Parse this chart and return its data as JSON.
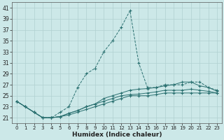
{
  "xlabel": "Humidex (Indice chaleur)",
  "background_color": "#cce8e8",
  "grid_color": "#b0d0d0",
  "line_color": "#2a7070",
  "xlim": [
    -0.5,
    23.5
  ],
  "ylim": [
    20.0,
    42.0
  ],
  "yticks": [
    21,
    23,
    25,
    27,
    29,
    31,
    33,
    35,
    37,
    39,
    41
  ],
  "xticks": [
    0,
    1,
    2,
    3,
    4,
    5,
    6,
    7,
    8,
    9,
    10,
    11,
    12,
    13,
    14,
    15,
    16,
    17,
    18,
    19,
    20,
    21,
    22,
    23
  ],
  "series": [
    {
      "linestyle": "--",
      "x": [
        0,
        1,
        2,
        3,
        4,
        5,
        6,
        7,
        8,
        9,
        10,
        11,
        12,
        13,
        14,
        15,
        16,
        17,
        18,
        19,
        20,
        21,
        22,
        23
      ],
      "y": [
        24,
        23,
        22,
        21,
        21,
        22,
        23,
        26.5,
        29,
        30,
        33,
        35,
        37.5,
        40.5,
        31,
        26.5,
        26.5,
        27,
        27,
        27,
        27.5,
        27.5,
        26.5,
        26
      ]
    },
    {
      "linestyle": "-",
      "x": [
        0,
        1,
        2,
        3,
        4,
        5,
        6,
        7,
        8,
        9,
        10,
        11,
        12,
        13,
        14,
        15,
        16,
        17,
        18,
        19,
        20,
        21,
        22,
        23
      ],
      "y": [
        24,
        23,
        22,
        21,
        21,
        21.2,
        21.5,
        22,
        22.5,
        23,
        23.5,
        24,
        24.5,
        25,
        25,
        25,
        25.2,
        25.5,
        25.5,
        25.5,
        25.5,
        25.5,
        25.5,
        25.5
      ]
    },
    {
      "linestyle": "-",
      "x": [
        0,
        1,
        2,
        3,
        4,
        5,
        6,
        7,
        8,
        9,
        10,
        11,
        12,
        13,
        14,
        15,
        16,
        17,
        18,
        19,
        20,
        21,
        22,
        23
      ],
      "y": [
        24,
        23,
        22,
        21,
        21,
        21.2,
        21.8,
        22.3,
        23,
        23.5,
        24,
        24.5,
        25,
        25.2,
        25.3,
        25.5,
        25.7,
        26,
        26,
        26,
        26.2,
        26,
        25.8,
        25.5
      ]
    },
    {
      "linestyle": "-",
      "x": [
        0,
        1,
        2,
        3,
        4,
        5,
        6,
        7,
        8,
        9,
        10,
        11,
        12,
        13,
        14,
        15,
        16,
        17,
        18,
        19,
        20,
        21,
        22,
        23
      ],
      "y": [
        24,
        23,
        22,
        21,
        21,
        21.2,
        21.8,
        22.3,
        23,
        23.5,
        24.5,
        25,
        25.5,
        26,
        26.2,
        26.3,
        26.5,
        26.8,
        27,
        27.5,
        27.5,
        26.8,
        26.5,
        25.8
      ]
    }
  ]
}
